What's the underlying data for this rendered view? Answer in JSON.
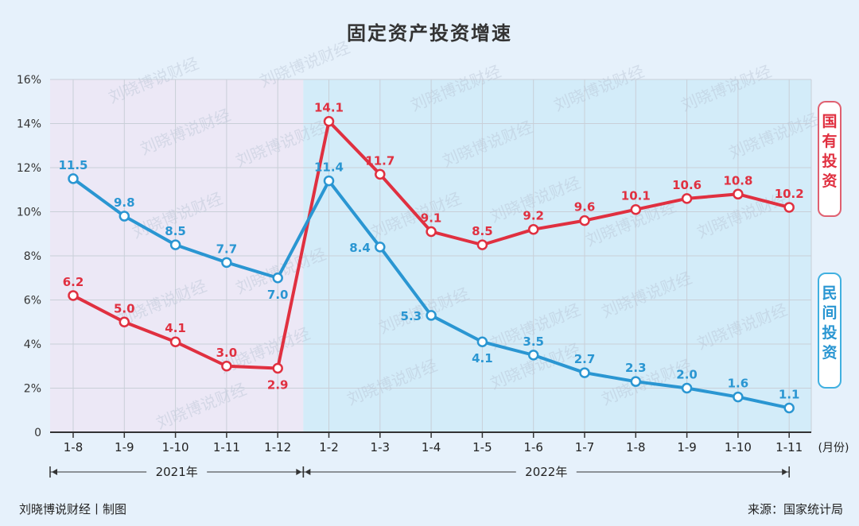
{
  "title": "固定资产投资增速",
  "credit": "刘晓博说财经丨制图",
  "source": "来源：国家统计局",
  "watermark": "刘晓博说财经",
  "chart_data": {
    "type": "line",
    "categories": [
      "1-8",
      "1-9",
      "1-10",
      "1-11",
      "1-12",
      "1-2",
      "1-3",
      "1-4",
      "1-5",
      "1-6",
      "1-7",
      "1-8",
      "1-9",
      "1-10",
      "1-11"
    ],
    "x_unit": "(月份)",
    "y_ticks": [
      "0",
      "2%",
      "4%",
      "6%",
      "8%",
      "10%",
      "12%",
      "14%",
      "16%"
    ],
    "ylim": [
      0,
      16
    ],
    "year_groups": [
      {
        "label": "2021年",
        "from": 0,
        "to": 4
      },
      {
        "label": "2022年",
        "from": 5,
        "to": 14
      }
    ],
    "series": [
      {
        "name": "国有投资",
        "color": "#e03040",
        "values": [
          6.2,
          5.0,
          4.1,
          3.0,
          2.9,
          14.1,
          11.7,
          9.1,
          8.5,
          9.2,
          9.6,
          10.1,
          10.6,
          10.8,
          10.2
        ],
        "labels": [
          "6.2",
          "5.0",
          "4.1",
          "3.0",
          "2.9",
          "14.1",
          "11.7",
          "9.1",
          "8.5",
          "9.2",
          "9.6",
          "10.1",
          "10.6",
          "10.8",
          "10.2"
        ]
      },
      {
        "name": "民间投资",
        "color": "#2a96d2",
        "values": [
          11.5,
          9.8,
          8.5,
          7.7,
          7.0,
          11.4,
          8.4,
          5.3,
          4.1,
          3.5,
          2.7,
          2.3,
          2.0,
          1.6,
          1.1
        ],
        "labels": [
          "11.5",
          "9.8",
          "8.5",
          "7.7",
          "7.0",
          "11.4",
          "8.4",
          "5.3",
          "4.1",
          "3.5",
          "2.7",
          "2.3",
          "2.0",
          "1.6",
          "1.1"
        ]
      }
    ],
    "legend": [
      {
        "chars": [
          "国",
          "有",
          "投",
          "资"
        ],
        "color": "#e03040"
      },
      {
        "chars": [
          "民",
          "间",
          "投",
          "资"
        ],
        "color": "#2a96d2"
      }
    ]
  }
}
